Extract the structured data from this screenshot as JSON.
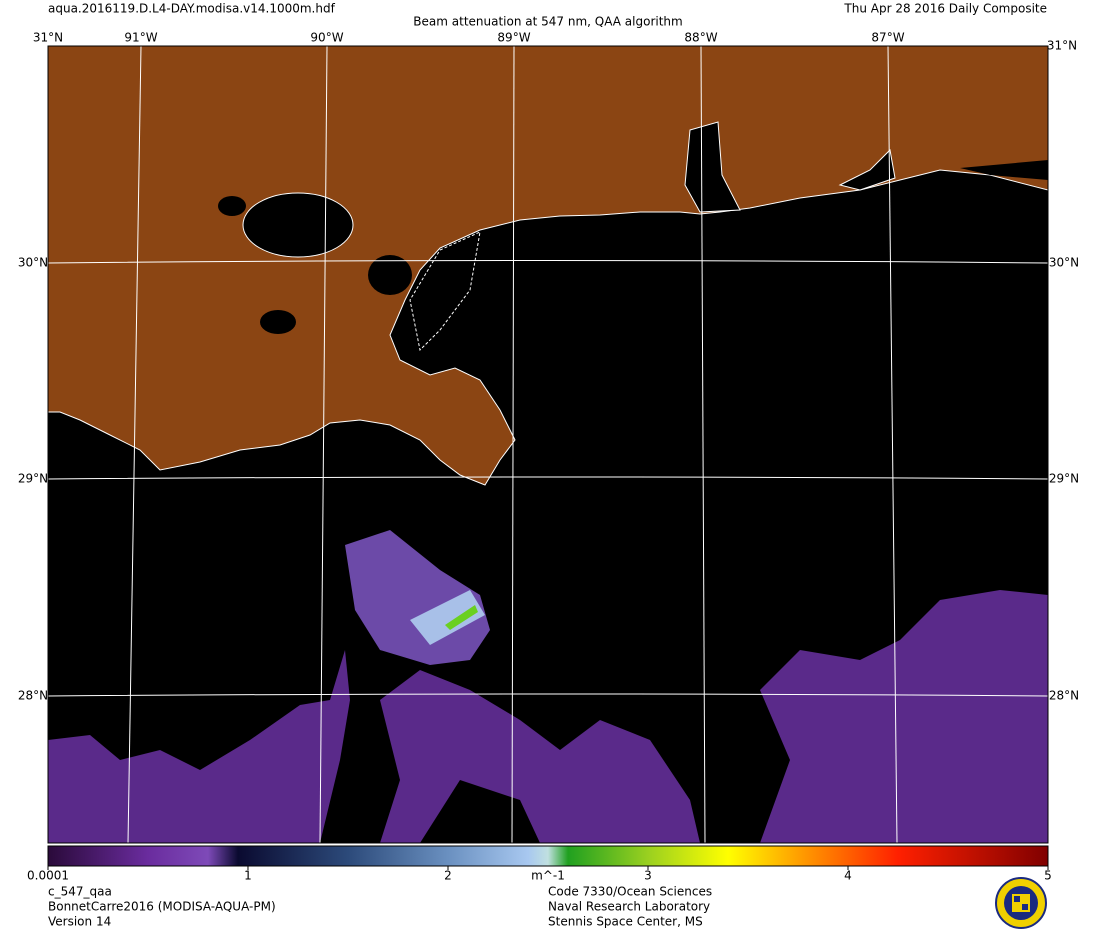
{
  "header": {
    "file": "aqua.2016119.D.L4-DAY.modisa.v14.1000m.hdf",
    "title": "Beam attenuation at 547 nm, QAA algorithm",
    "date": "Thu Apr 28 2016 Daily Composite"
  },
  "map": {
    "lat_labels": [
      "31°N",
      "30°N",
      "29°N",
      "28°N"
    ],
    "lon_labels": [
      "91°W",
      "90°W",
      "89°W",
      "88°W",
      "87°W"
    ]
  },
  "colorbar": {
    "range": [
      0.0001,
      5
    ],
    "ticks": [
      0.0001,
      1,
      2,
      3,
      4,
      5
    ],
    "unit": "m^-1"
  },
  "footer": {
    "left": [
      "c_547_qaa",
      "BonnetCarre2016 (MODISA-AQUA-PM)",
      "Version 14"
    ],
    "center": [
      "Code 7330/Ocean Sciences",
      "Naval Research Laboratory",
      "Stennis Space Center, MS"
    ]
  }
}
